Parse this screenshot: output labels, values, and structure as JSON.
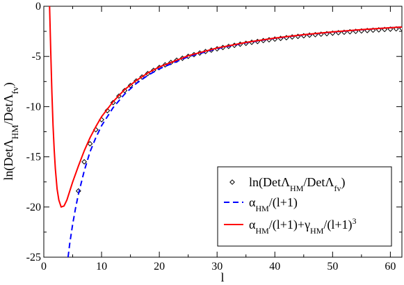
{
  "chart_data": {
    "type": "line",
    "xlabel": "l",
    "ylabel": {
      "parts": [
        {
          "t": "ln(Det",
          "sub": false
        },
        {
          "t": "Λ",
          "sub": false
        },
        {
          "t": "HM",
          "sub": true
        },
        {
          "t": "/Det",
          "sub": false
        },
        {
          "t": "Λ",
          "sub": false
        },
        {
          "t": "fv",
          "sub": true
        },
        {
          "t": ")",
          "sub": false
        }
      ]
    },
    "xlim": [
      0,
      62
    ],
    "ylim": [
      -25,
      0
    ],
    "xticks": [
      0,
      10,
      20,
      30,
      40,
      50,
      60
    ],
    "yticks": [
      0,
      -5,
      -10,
      -15,
      -20,
      -25
    ],
    "xtick_labels": [
      "0",
      "10",
      "20",
      "30",
      "40",
      "50",
      "60"
    ],
    "ytick_labels": [
      "0",
      "-5",
      "-10",
      "-15",
      "-20",
      "-25"
    ],
    "legend_position": "bottom-right",
    "series": [
      {
        "name": "ln(DetΛHM/DetΛfv)",
        "label_parts": [
          {
            "t": "ln(Det",
            "mode": "normal"
          },
          {
            "t": "Λ",
            "mode": "normal"
          },
          {
            "t": "HM",
            "mode": "sub"
          },
          {
            "t": "/Det",
            "mode": "normal"
          },
          {
            "t": "Λ",
            "mode": "normal"
          },
          {
            "t": "fv",
            "mode": "sub"
          },
          {
            "t": ")",
            "mode": "normal"
          }
        ],
        "kind": "scatter",
        "marker": "diamond",
        "color": "#000000",
        "x": [
          6,
          7,
          8,
          9,
          10,
          11,
          12,
          13,
          14,
          15,
          16,
          17,
          18,
          19,
          20,
          21,
          22,
          23,
          24,
          25,
          26,
          27,
          28,
          29,
          30,
          31,
          32,
          33,
          34,
          35,
          36,
          37,
          38,
          39,
          40,
          41,
          42,
          43,
          44,
          45,
          46,
          47,
          48,
          49,
          50,
          51,
          52,
          53,
          54,
          55,
          56,
          57,
          58,
          59,
          60,
          61,
          62
        ],
        "y": [
          -18.4,
          -15.5,
          -13.7,
          -12.3,
          -11.3,
          -10.4,
          -9.6,
          -8.95,
          -8.4,
          -7.9,
          -7.45,
          -7.05,
          -6.7,
          -6.38,
          -6.1,
          -5.84,
          -5.6,
          -5.38,
          -5.18,
          -4.99,
          -4.82,
          -4.66,
          -4.51,
          -4.37,
          -4.24,
          -4.11,
          -4.0,
          -3.89,
          -3.78,
          -3.69,
          -3.59,
          -3.51,
          -3.42,
          -3.34,
          -3.27,
          -3.2,
          -3.13,
          -3.06,
          -3.0,
          -2.94,
          -2.88,
          -2.83,
          -2.78,
          -2.73,
          -2.68,
          -2.63,
          -2.59,
          -2.54,
          -2.5,
          -2.46,
          -2.42,
          -2.38,
          -2.35,
          -2.31,
          -2.28,
          -2.25,
          -2.21
        ]
      },
      {
        "name": "αHM/(l+1)",
        "label_parts": [
          {
            "t": "α",
            "mode": "normal"
          },
          {
            "t": "HM",
            "mode": "sub"
          },
          {
            "t": "/(l+1)",
            "mode": "normal"
          }
        ],
        "kind": "line",
        "dash": "dashed",
        "color": "#0000ff",
        "x": [
          4.2,
          4.5,
          5,
          5.5,
          6,
          7,
          8,
          9,
          10,
          12,
          14,
          16,
          18,
          20,
          25,
          30,
          35,
          40,
          45,
          50,
          55,
          60,
          62
        ],
        "y": [
          -25.0,
          -23.6,
          -21.7,
          -20.1,
          -18.7,
          -16.4,
          -14.5,
          -13.1,
          -11.9,
          -10.1,
          -8.74,
          -7.7,
          -6.89,
          -6.23,
          -5.03,
          -4.22,
          -3.64,
          -3.19,
          -2.85,
          -2.57,
          -2.34,
          -2.14,
          -2.07
        ]
      },
      {
        "name": "αHM/(l+1)+γHM/(l+1)3",
        "label_parts": [
          {
            "t": "α",
            "mode": "normal"
          },
          {
            "t": "HM",
            "mode": "sub"
          },
          {
            "t": "/(l+1)+",
            "mode": "normal"
          },
          {
            "t": "γ",
            "mode": "normal"
          },
          {
            "t": "HM",
            "mode": "sub"
          },
          {
            "t": "/(l+1)",
            "mode": "normal"
          },
          {
            "t": "3",
            "mode": "sup"
          }
        ],
        "kind": "line",
        "dash": "solid",
        "color": "#ff0000",
        "x": [
          1.0,
          1.2,
          1.4,
          1.6,
          1.8,
          2.0,
          2.3,
          2.6,
          3.0,
          3.5,
          4.0,
          4.5,
          5.0,
          6,
          7,
          8,
          9,
          10,
          12,
          14,
          16,
          18,
          20,
          25,
          30,
          35,
          40,
          45,
          50,
          55,
          60,
          62
        ],
        "y": [
          0.0,
          -4.5,
          -8.6,
          -11.9,
          -14.3,
          -16.2,
          -18.2,
          -19.3,
          -20.0,
          -19.9,
          -19.3,
          -18.4,
          -17.5,
          -15.9,
          -14.4,
          -13.1,
          -12.0,
          -11.0,
          -9.5,
          -8.3,
          -7.4,
          -6.65,
          -6.05,
          -4.93,
          -4.16,
          -3.6,
          -3.17,
          -2.83,
          -2.55,
          -2.33,
          -2.14,
          -2.07
        ]
      }
    ]
  }
}
